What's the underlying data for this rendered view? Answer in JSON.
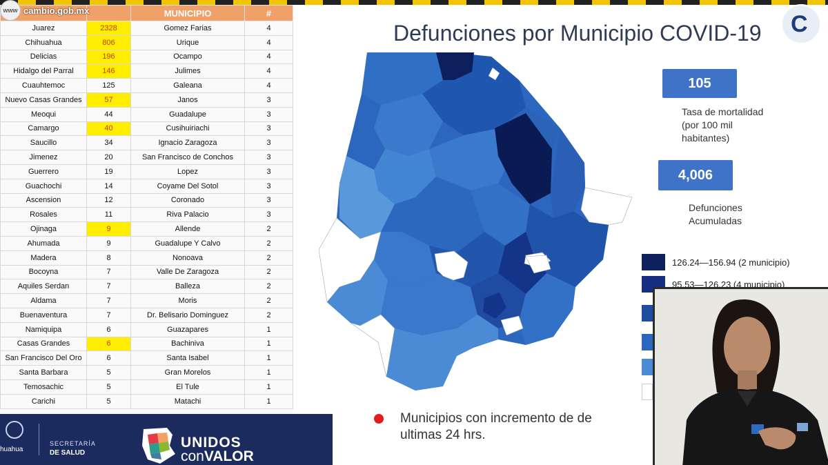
{
  "source_url": "cambio.gob.mx",
  "url_badge": "www",
  "table": {
    "header": [
      "",
      "",
      "MUNICIPIO",
      "#"
    ],
    "rows": [
      [
        "Juarez",
        "2328",
        "Gomez Farias",
        "4"
      ],
      [
        "Chihuahua",
        "806",
        "Urique",
        "4"
      ],
      [
        "Delicias",
        "196",
        "Ocampo",
        "4"
      ],
      [
        "Hidalgo del Parral",
        "146",
        "Julimes",
        "4"
      ],
      [
        "Cuauhtemoc",
        "125",
        "Galeana",
        "4"
      ],
      [
        "Nuevo Casas Grandes",
        "57",
        "Janos",
        "3"
      ],
      [
        "Meoqui",
        "44",
        "Guadalupe",
        "3"
      ],
      [
        "Camargo",
        "40",
        "Cusihuiriachi",
        "3"
      ],
      [
        "Saucillo",
        "34",
        "Ignacio Zaragoza",
        "3"
      ],
      [
        "Jimenez",
        "20",
        "San Francisco de Conchos",
        "3"
      ],
      [
        "Guerrero",
        "19",
        "Lopez",
        "3"
      ],
      [
        "Guachochi",
        "14",
        "Coyame Del Sotol",
        "3"
      ],
      [
        "Ascension",
        "12",
        "Coronado",
        "3"
      ],
      [
        "Rosales",
        "11",
        "Riva Palacio",
        "3"
      ],
      [
        "Ojinaga",
        "9",
        "Allende",
        "2"
      ],
      [
        "Ahumada",
        "9",
        "Guadalupe Y Calvo",
        "2"
      ],
      [
        "Madera",
        "8",
        "Nonoava",
        "2"
      ],
      [
        "Bocoyna",
        "7",
        "Valle De Zaragoza",
        "2"
      ],
      [
        "Aquiles Serdan",
        "7",
        "Balleza",
        "2"
      ],
      [
        "Aldama",
        "7",
        "Moris",
        "2"
      ],
      [
        "Buenaventura",
        "7",
        "Dr. Belisario Dominguez",
        "2"
      ],
      [
        "Namiquipa",
        "6",
        "Guazapares",
        "1"
      ],
      [
        "Casas Grandes",
        "6",
        "Bachiniva",
        "1"
      ],
      [
        "San Francisco Del Oro",
        "6",
        "Santa Isabel",
        "1"
      ],
      [
        "Santa Barbara",
        "5",
        "Gran Morelos",
        "1"
      ],
      [
        "Temosachic",
        "5",
        "El Tule",
        "1"
      ],
      [
        "Carichi",
        "5",
        "Matachi",
        "1"
      ]
    ],
    "highlighted_rows": [
      0,
      1,
      2,
      3,
      5,
      7,
      14,
      22
    ],
    "highlight_color": "#ffee00"
  },
  "title": "Defunciones por Municipio COVID-19",
  "corner_logo": "C",
  "stat1": {
    "value": "105",
    "label": [
      "Tasa de mortalidad",
      "(por 100 mil",
      "habitantes)"
    ]
  },
  "stat2": {
    "value": "4,006",
    "label": [
      "Defunciones",
      "Acumuladas"
    ]
  },
  "legend": [
    {
      "label": "126.24—156.94 (2 municipio)",
      "color": "#0d1f5c"
    },
    {
      "label": "95.53—126.23 (4 municipio)",
      "color": "#162f83"
    },
    {
      "label": "",
      "color": "#1f4ba0"
    },
    {
      "label": "",
      "color": "#2c66be"
    },
    {
      "label": "",
      "color": "#4b8bd5"
    },
    {
      "label": "",
      "color": "#ffffff"
    }
  ],
  "note": [
    "Municipios con incremento de de",
    "ultimas 24 hrs."
  ],
  "footer": {
    "state": "huahua",
    "secretaria_line1": "SECRETARÍA",
    "secretaria_line2": "DE SALUD",
    "slogan_line1": "UNIDOS",
    "slogan_line2a": "con",
    "slogan_line2b": "VALOR"
  },
  "colors": {
    "accent_blue": "#3e73c8",
    "navy": "#1b2b5e",
    "table_header": "#f0a069",
    "map_dark": "#0d1f5c"
  }
}
